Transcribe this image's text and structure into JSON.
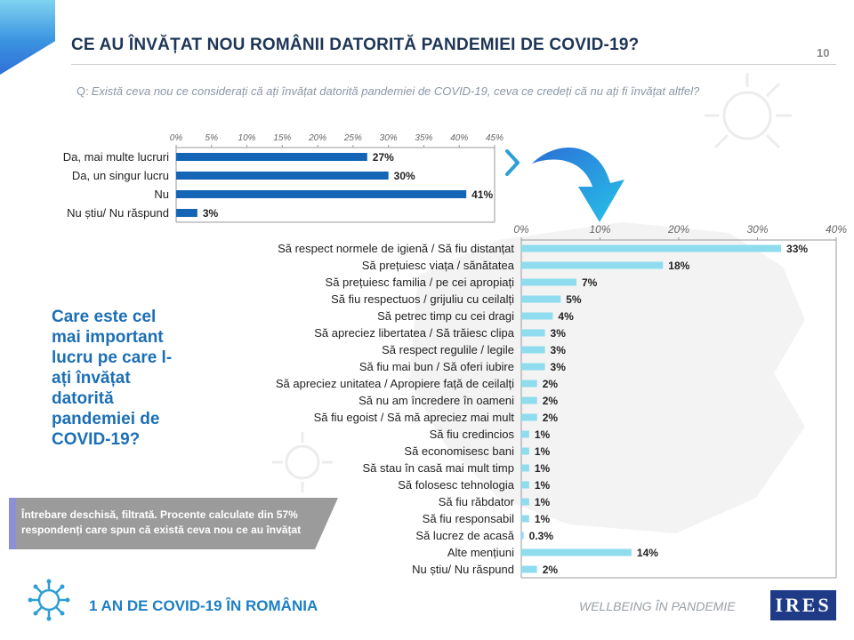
{
  "header": {
    "title": "CE AU ÎNVĂȚAT NOU ROMÂNII DATORITĂ PANDEMIEI DE COVID-19?",
    "page_number": "10"
  },
  "question": {
    "label": "Q:",
    "text": "Există ceva nou ce considerați că ați învățat datorită pandemiei de COVID-19, ceva ce credeți că nu ați fi învățat altfel?"
  },
  "side_question": "Care este cel mai important lucru pe care l-ați învățat datorită pandemiei de COVID-19?",
  "note": "Întrebare deschisă, filtrată. Procente calculate din 57% respondenți care spun că există ceva nou ce au învățat",
  "footer": {
    "left": "1 AN DE COVID-19 ÎN ROMÂNIA",
    "right": "WELLBEING ÎN PANDEMIE",
    "logo": "IRES"
  },
  "colors": {
    "accent_blue": "#1c6fb5",
    "dark_bar": "#1565b7",
    "light_bar": "#8fdcee"
  },
  "icons": [
    "virus-icon",
    "chevron-right-icon",
    "curved-arrow-icon"
  ],
  "chart_data": [
    {
      "type": "bar",
      "orientation": "horizontal",
      "categories": [
        "Da, mai multe lucruri",
        "Da, un singur lucru",
        "Nu",
        "Nu știu/ Nu răspund"
      ],
      "values": [
        27,
        30,
        41,
        3
      ],
      "value_labels": [
        "27%",
        "30%",
        "41%",
        "3%"
      ],
      "ticks": [
        "0%",
        "5%",
        "10%",
        "15%",
        "20%",
        "25%",
        "30%",
        "35%",
        "40%",
        "45%"
      ],
      "xlim": [
        0,
        45
      ],
      "axis_position": "top",
      "grid": false,
      "color": "#1565b7"
    },
    {
      "type": "bar",
      "orientation": "horizontal",
      "categories": [
        "Să respect normele de igienă / Să fiu distanțat",
        "Să prețuiesc viața / sănătatea",
        "Să prețuiesc familia  / pe cei apropiați",
        "Să fiu respectuos / grijuliu cu ceilalți",
        "Să petrec timp cu cei dragi",
        "Să apreciez libertatea / Să trăiesc clipa",
        "Să respect regulile / legile",
        "Să fiu mai bun / Să oferi iubire",
        "Să apreciez unitatea  / Apropiere față de ceilalți",
        "Să nu am încredere în oameni",
        "Să fiu egoist / Să mă apreciez mai mult",
        "Să fiu credincios",
        "Să economisesc bani",
        "Să stau în casă mai mult timp",
        "Să folosesc tehnologia",
        "Să fiu răbdator",
        "Să fiu responsabil",
        "Să lucrez de acasă",
        "Alte mențiuni",
        "Nu știu/ Nu răspund"
      ],
      "values": [
        33,
        18,
        7,
        5,
        4,
        3,
        3,
        3,
        2,
        2,
        2,
        1,
        1,
        1,
        1,
        1,
        1,
        0.3,
        14,
        2
      ],
      "value_labels": [
        "33%",
        "18%",
        "7%",
        "5%",
        "4%",
        "3%",
        "3%",
        "3%",
        "2%",
        "2%",
        "2%",
        "1%",
        "1%",
        "1%",
        "1%",
        "1%",
        "1%",
        "0.3%",
        "14%",
        "2%"
      ],
      "ticks": [
        "0%",
        "10%",
        "20%",
        "30%",
        "40%"
      ],
      "xlim": [
        0,
        40
      ],
      "axis_position": "top",
      "grid": false,
      "color": "#8fdcee"
    }
  ]
}
